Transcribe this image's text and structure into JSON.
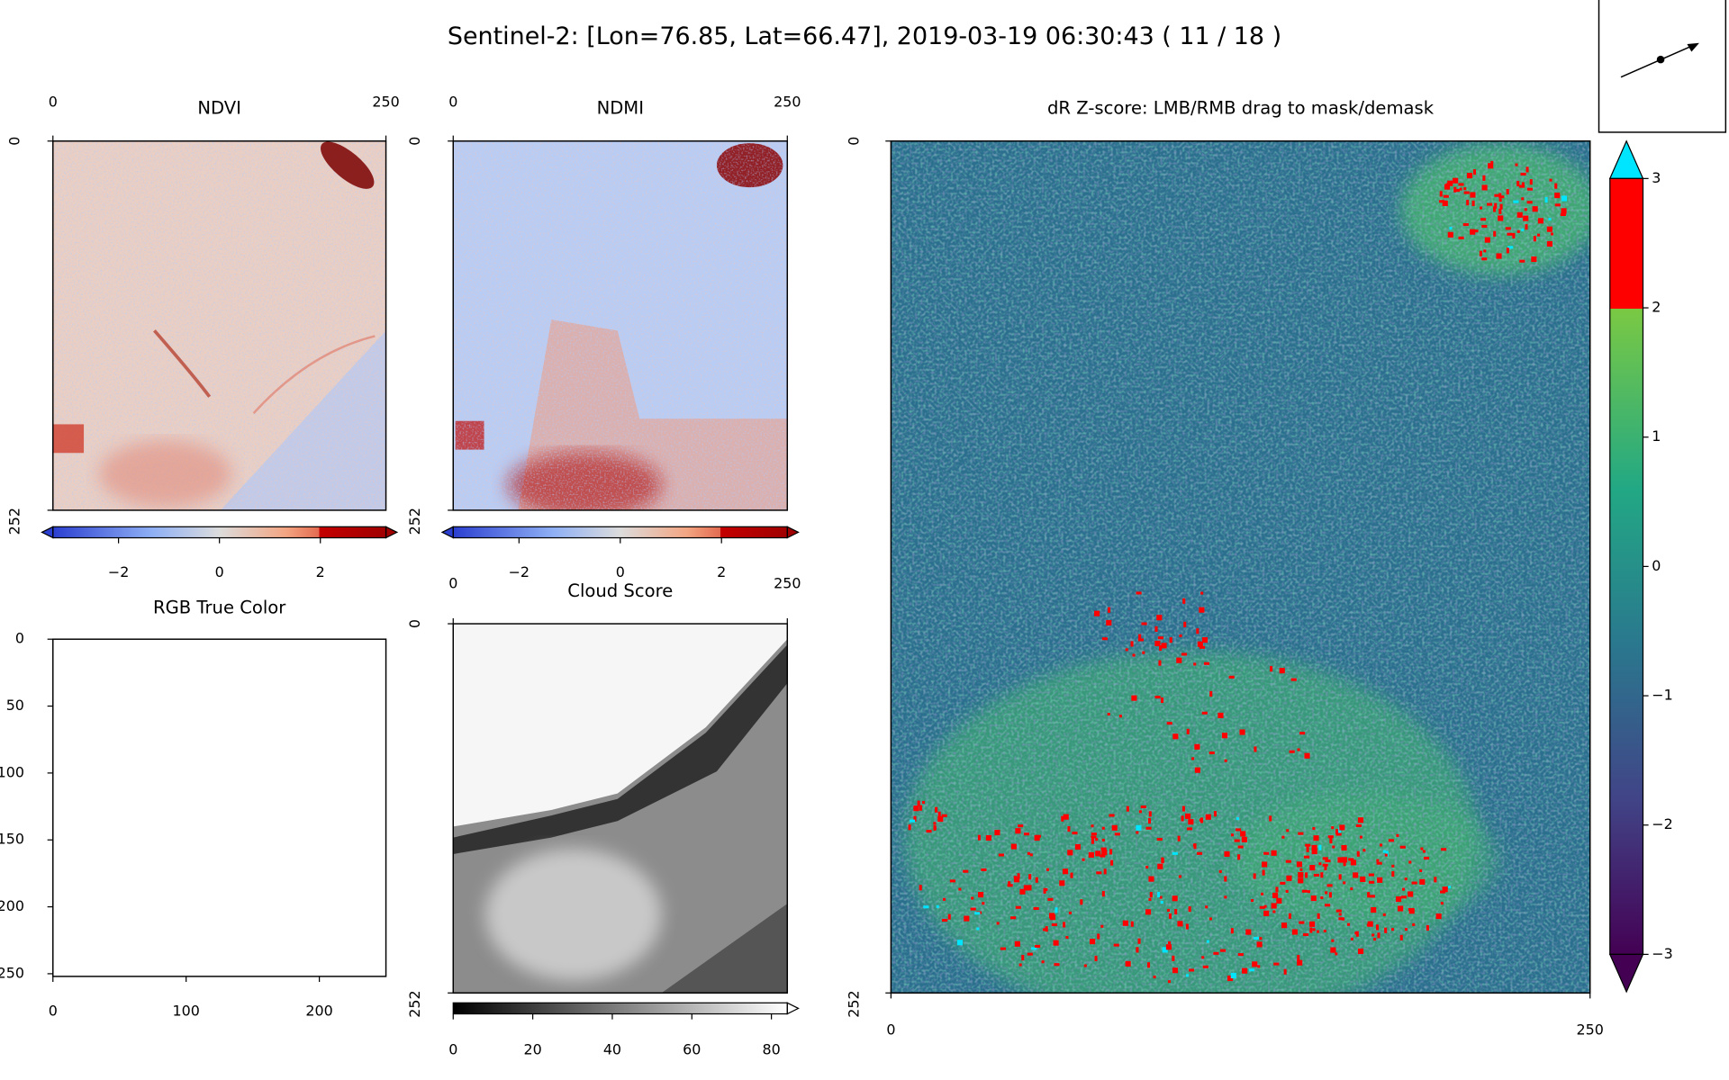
{
  "title": "Sentinel-2: [Lon=76.85, Lat=66.47], 2019-03-19 06:30:43 ( 11 / 18 )",
  "panels": [
    {
      "title": "NDVI",
      "xlim": [
        0,
        250
      ],
      "ylim": [
        0,
        252
      ],
      "xticks": [
        0,
        250
      ],
      "yticks": [
        0,
        252
      ],
      "colorbar": {
        "lim": [
          -3.3,
          3.3
        ],
        "ticks": [
          {
            "value": -2,
            "label": "−2"
          },
          0,
          2
        ]
      }
    },
    {
      "title": "NDMI",
      "xlim": [
        0,
        250
      ],
      "ylim": [
        0,
        252
      ],
      "xticks": [
        0,
        250
      ],
      "yticks": [
        0,
        252
      ],
      "colorbar": {
        "lim": [
          -3.3,
          3.3
        ],
        "ticks": [
          {
            "value": -2,
            "label": "−2"
          },
          0,
          2
        ]
      }
    },
    {
      "title": "RGB True Color",
      "xlim": [
        0,
        250
      ],
      "ylim": [
        0,
        252
      ],
      "xticks": [
        0,
        100,
        200
      ],
      "yticks": [
        0,
        50,
        100,
        150,
        200,
        250
      ]
    },
    {
      "title": "Cloud Score",
      "xlim": [
        0,
        250
      ],
      "ylim": [
        0,
        252
      ],
      "xticks": [
        0,
        250
      ],
      "yticks": [
        0,
        252
      ],
      "colorbar": {
        "lim": [
          0,
          84
        ],
        "ticks": [
          0,
          20,
          40,
          60,
          80
        ]
      }
    },
    {
      "title": "dR Z-score: LMB/RMB drag to mask/demask",
      "xlim": [
        0,
        250
      ],
      "ylim": [
        0,
        252
      ],
      "xticks": [
        0,
        250
      ],
      "yticks": [
        0,
        252
      ],
      "colorbar": {
        "lim": [
          -3,
          3
        ],
        "ticks": [
          {
            "value": -3,
            "label": "−3"
          },
          {
            "value": -2,
            "label": "−2"
          },
          {
            "value": -1,
            "label": "−1"
          },
          0,
          1,
          2,
          3
        ]
      }
    }
  ]
}
